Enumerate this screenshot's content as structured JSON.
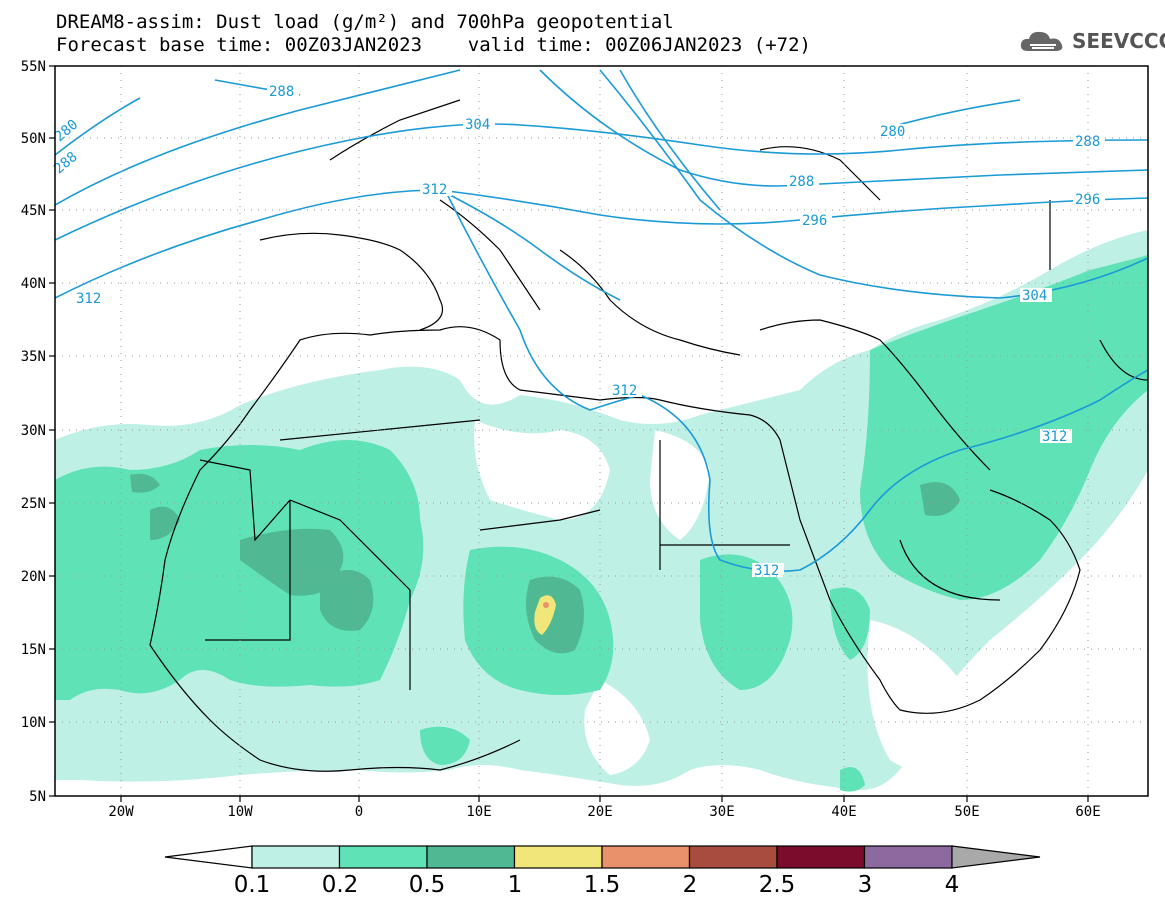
{
  "title_line1": "DREAM8-assim: Dust load (g/m²) and 700hPa geopotential",
  "title_line2": "Forecast base time: 00Z03JAN2023    valid time: 00Z06JAN2023 (+72)",
  "logo_text": "SEEVCCC",
  "map": {
    "lat_labels": [
      "55N",
      "50N",
      "45N",
      "40N",
      "35N",
      "30N",
      "25N",
      "20N",
      "15N",
      "10N",
      "5N"
    ],
    "lon_labels": [
      "20W",
      "10W",
      "0",
      "10E",
      "20E",
      "30E",
      "40E",
      "50E",
      "60E"
    ],
    "contour_labels": [
      "280",
      "288",
      "288",
      "304",
      "312",
      "280",
      "288",
      "296",
      "288",
      "296",
      "304",
      "312",
      "312",
      "312",
      "312"
    ],
    "contour_color": "#1a9ad6"
  },
  "colorbar": {
    "labels": [
      "0.1",
      "0.2",
      "0.5",
      "1",
      "1.5",
      "2",
      "2.5",
      "3",
      "4"
    ],
    "colors": [
      "#bff0e6",
      "#5ee2b6",
      "#51b894",
      "#f0e67a",
      "#e8916a",
      "#a84c40",
      "#7b0c2c",
      "#8c6aa0",
      "#a9a9a9"
    ]
  }
}
